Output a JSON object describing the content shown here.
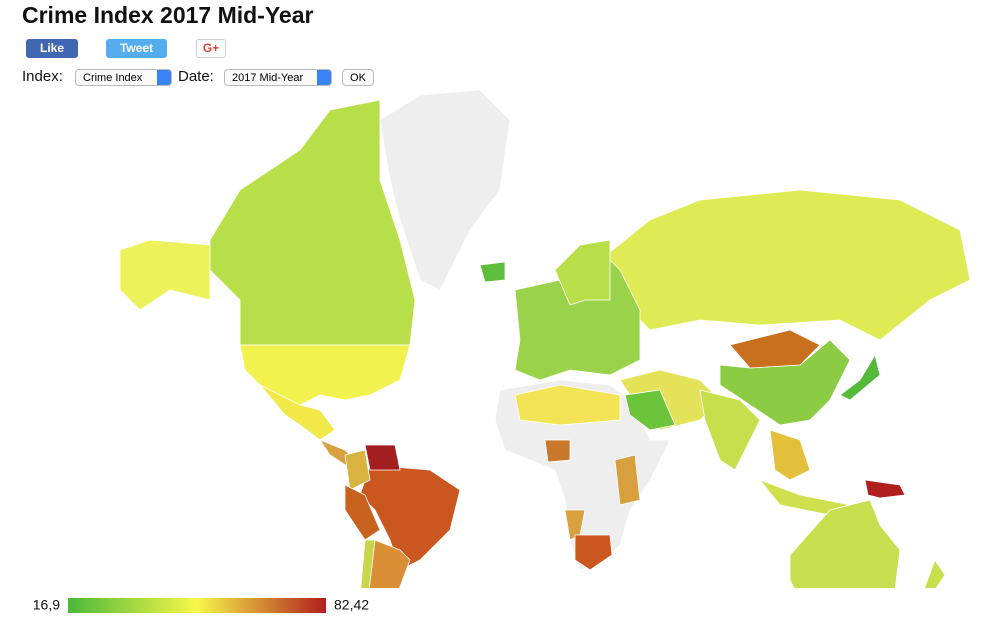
{
  "header": {
    "title": "Crime Index 2017 Mid-Year"
  },
  "social": {
    "like": "Like",
    "tweet": "Tweet",
    "gplus": "G+"
  },
  "controls": {
    "index_label": "Index:",
    "index_value": "Crime Index",
    "date_label": "Date:",
    "date_value": "2017 Mid-Year",
    "ok": "OK"
  },
  "legend": {
    "lim": [
      16.9,
      82.42
    ],
    "ticks": [
      {
        "value": 16.9,
        "label": "16,9"
      },
      {
        "value": 82.42,
        "label": "82,42"
      }
    ],
    "colors": [
      "#4cb83a",
      "#f7f74a",
      "#b01e1e"
    ]
  }
}
